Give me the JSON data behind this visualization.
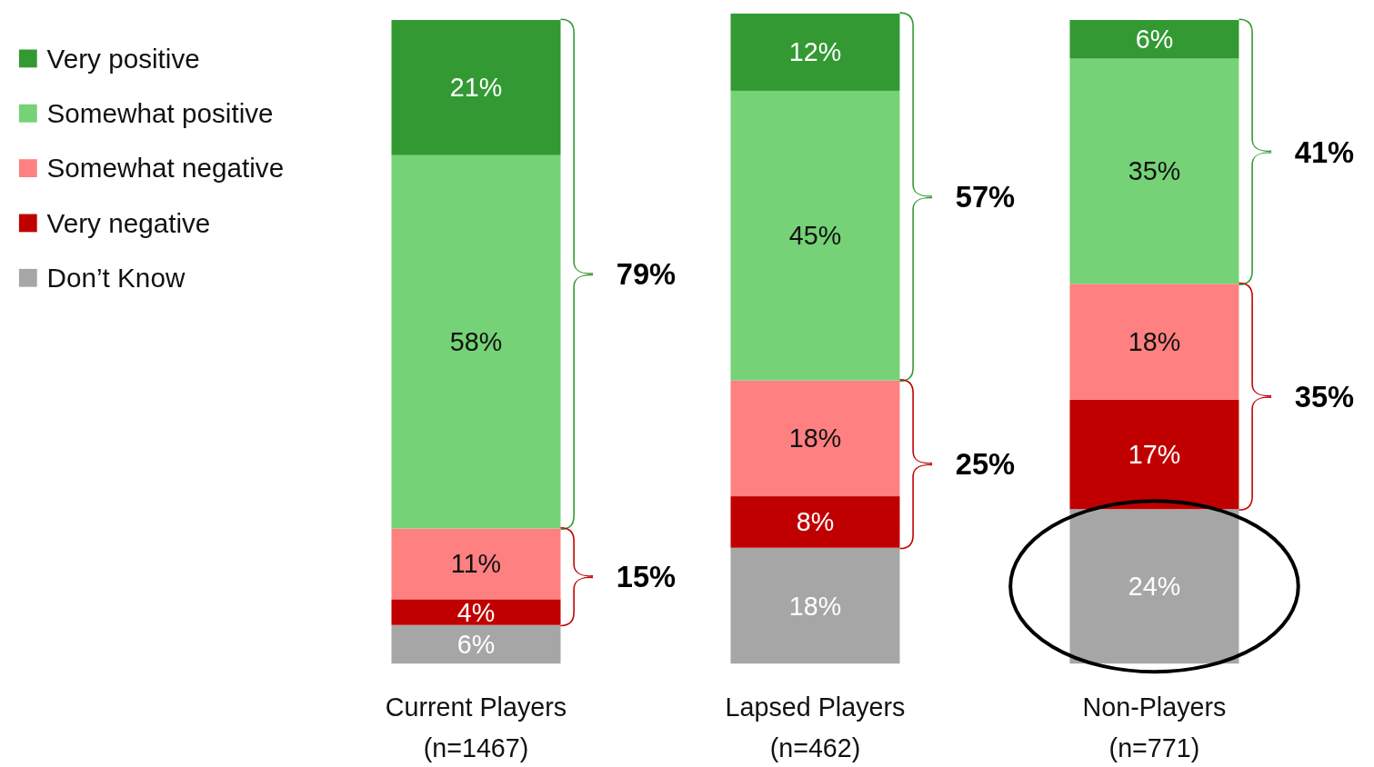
{
  "chart_data": {
    "type": "bar",
    "stacked": true,
    "legend": "top left",
    "categories": [
      "Current Players\n(n=1467)",
      "Lapsed Players\n(n=462)",
      "Non-Players\n(n=771)"
    ],
    "series": [
      {
        "name": "Don’t Know",
        "color": "#a6a6a6",
        "values": [
          6,
          18,
          24
        ],
        "value_labels": [
          "6%",
          "18%",
          "24%"
        ]
      },
      {
        "name": "Very negative",
        "color": "#c00000",
        "values": [
          4,
          8,
          17
        ],
        "value_labels": [
          "4%",
          "8%",
          "17%"
        ]
      },
      {
        "name": "Somewhat negative",
        "color": "#ff8080",
        "values": [
          11,
          18,
          18
        ],
        "value_labels": [
          "11%",
          "18%",
          "18%"
        ]
      },
      {
        "name": "Somewhat positive",
        "color": "#75d276",
        "values": [
          58,
          45,
          35
        ],
        "value_labels": [
          "58%",
          "45%",
          "35%"
        ]
      },
      {
        "name": "Very positive",
        "color": "#339933",
        "values": [
          21,
          12,
          6
        ],
        "value_labels": [
          "21%",
          "12%",
          "6%"
        ]
      }
    ],
    "annotations": [
      "79%",
      "15%",
      "57%",
      "25%",
      "41%",
      "35%"
    ]
  }
}
